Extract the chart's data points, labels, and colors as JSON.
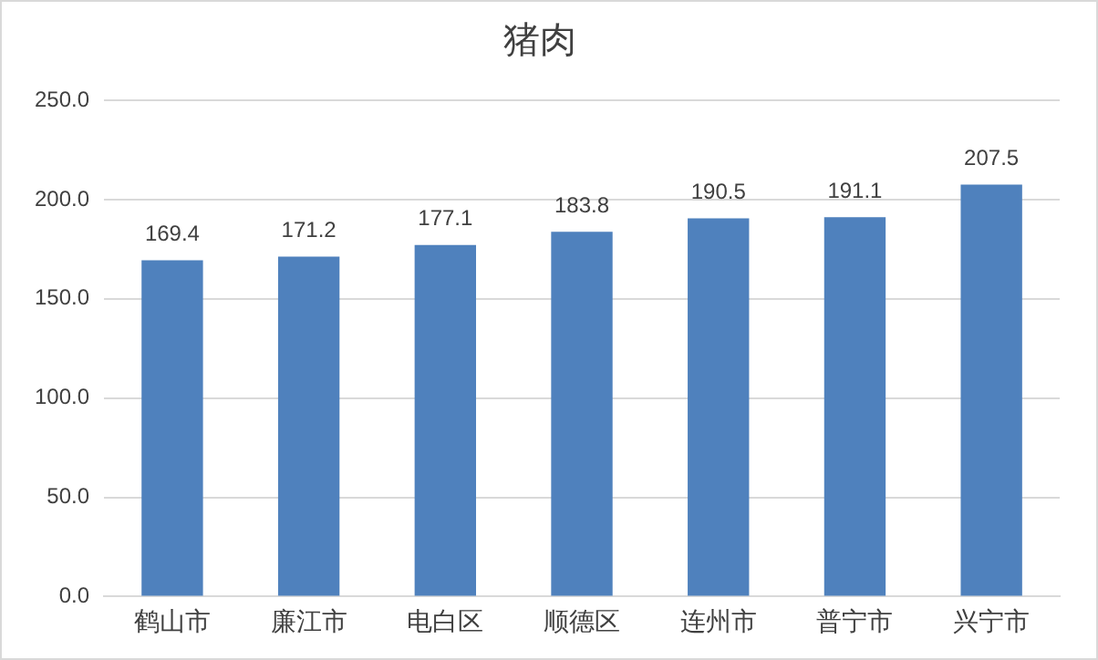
{
  "chart_data": {
    "type": "bar",
    "title": "猪肉",
    "categories": [
      "鹤山市",
      "廉江市",
      "电白区",
      "顺德区",
      "连州市",
      "普宁市",
      "兴宁市"
    ],
    "values": [
      169.4,
      171.2,
      177.1,
      183.8,
      190.5,
      191.1,
      207.5
    ],
    "color": "#4f81bd",
    "ylim": [
      0,
      250
    ],
    "yticks": [
      {
        "value": 0,
        "label": "0.0"
      },
      {
        "value": 50,
        "label": "50.0"
      },
      {
        "value": 100,
        "label": "100.0"
      },
      {
        "value": 150,
        "label": "150.0"
      },
      {
        "value": 200,
        "label": "200.0"
      },
      {
        "value": 250,
        "label": "250.0"
      }
    ],
    "grid": "y",
    "legend": false,
    "data_labels": true
  }
}
